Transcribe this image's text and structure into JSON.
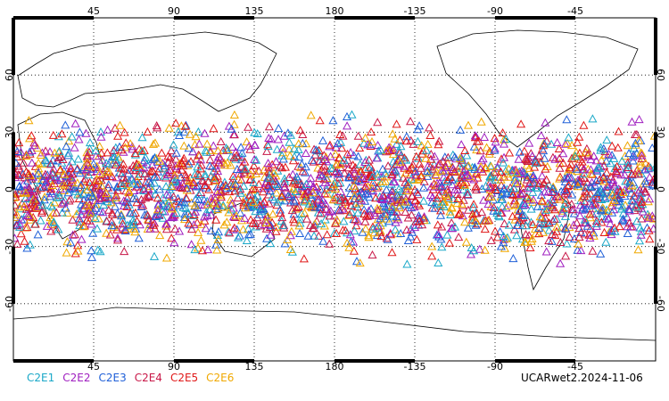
{
  "chart_data": {
    "type": "scatter",
    "projection": "cylindrical-equidistant",
    "lon_range": [
      0,
      360
    ],
    "lat_range": [
      -90,
      90
    ],
    "grid": "dotted",
    "marker": "open-triangle",
    "legend_placement": "bottom-left",
    "top_lon_labels": [
      "45",
      "90",
      "135",
      "180",
      "-135",
      "-90",
      "-45"
    ],
    "bottom_lon_labels": [
      "45",
      "90",
      "135",
      "180",
      "-135",
      "-90",
      "-45"
    ],
    "lon_ticks": [
      45,
      90,
      135,
      180,
      225,
      270,
      315
    ],
    "lat_ticks": [
      60,
      30,
      0,
      -30,
      -60
    ],
    "left_lat_labels": [
      "60",
      "30",
      "0",
      "-30",
      "-60"
    ],
    "right_lat_labels": [
      "60",
      "30",
      "0",
      "-30",
      "-60"
    ],
    "occultation_lat_band": [
      -45,
      45
    ],
    "points_per_series": 420,
    "series": [
      {
        "name": "C2E1",
        "color": "#1aa8c8"
      },
      {
        "name": "C2E2",
        "color": "#a020c0"
      },
      {
        "name": "C2E3",
        "color": "#2060d8"
      },
      {
        "name": "C2E4",
        "color": "#c81848"
      },
      {
        "name": "C2E5",
        "color": "#e01818"
      },
      {
        "name": "C2E6",
        "color": "#f0a800"
      }
    ]
  },
  "footer": {
    "source_label": "UCARwet2.2024-11-06"
  }
}
